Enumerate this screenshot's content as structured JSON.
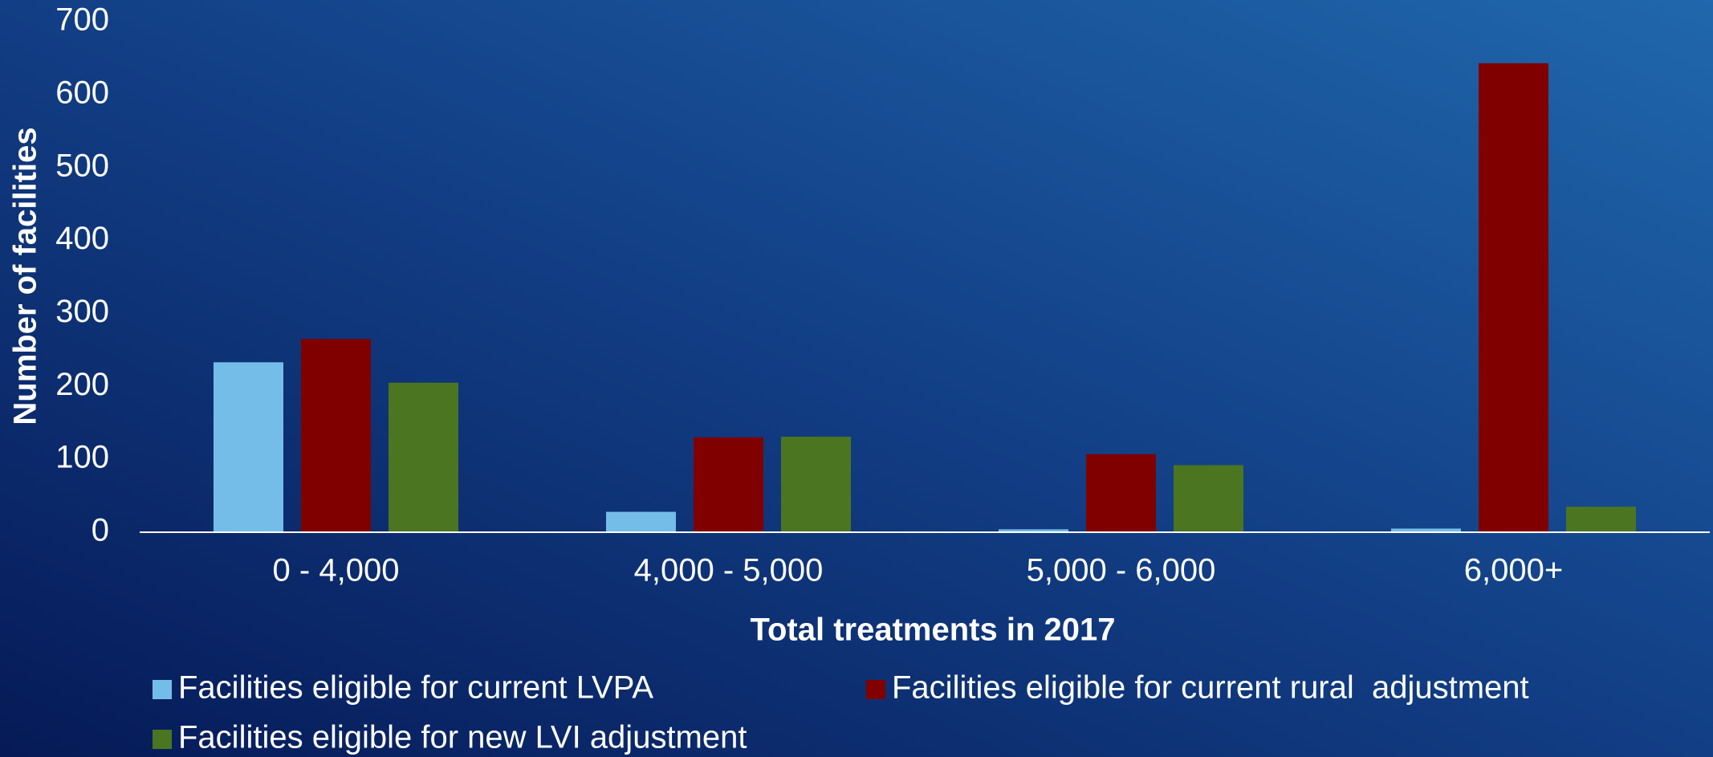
{
  "chart_data": {
    "type": "bar",
    "x_label": "Total treatments in 2017",
    "y_label": "Number of facilities",
    "categories": [
      "0 - 4,000",
      "4,000 - 5,000",
      "5,000 - 6,000",
      "6,000+"
    ],
    "series": [
      {
        "name": "Facilities eligible for current LVPA",
        "color": "#75bde9",
        "values": [
          233,
          28,
          4,
          5
        ]
      },
      {
        "name": "Facilities eligible for current rural  adjustment",
        "color": "#800000",
        "values": [
          265,
          130,
          107,
          643
        ]
      },
      {
        "name": "Facilities eligible for new LVI adjustment",
        "color": "#4b7520",
        "values": [
          205,
          131,
          92,
          35
        ]
      }
    ],
    "ylim": [
      0,
      700
    ],
    "yticks": [
      0,
      100,
      200,
      300,
      400,
      500,
      600,
      700
    ],
    "grid": false,
    "legend": "bottom"
  }
}
